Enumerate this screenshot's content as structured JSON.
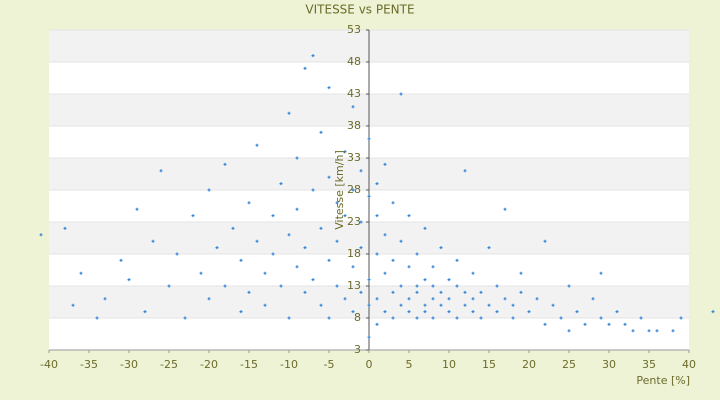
{
  "chart_data": {
    "type": "scatter",
    "title": "VITESSE vs PENTE",
    "x_label": "Pente [%]",
    "y_label": "Vitesse [km/h]",
    "color": "#3a87d6",
    "band_color": "#f2f2f2",
    "grid": true,
    "xlim": [
      -40,
      40
    ],
    "xticks": [
      -40,
      -35,
      -30,
      -25,
      -20,
      -15,
      -10,
      -5,
      0,
      5,
      10,
      15,
      20,
      25,
      30,
      35,
      40
    ],
    "ylim": [
      3,
      53
    ],
    "yticks": [
      3,
      8,
      13,
      18,
      23,
      28,
      33,
      38,
      43,
      48,
      53
    ],
    "x": [
      -41,
      -38,
      -37,
      -36,
      -34,
      -33,
      -31,
      -30,
      -29,
      -28,
      -27,
      -26,
      -25,
      -24,
      -23,
      -22,
      -21,
      -20,
      -20,
      -19,
      -18,
      -18,
      -17,
      -16,
      -16,
      -15,
      -15,
      -14,
      -14,
      -13,
      -13,
      -12,
      -12,
      -11,
      -11,
      -10,
      -10,
      -10,
      -9,
      -9,
      -9,
      -8,
      -8,
      -8,
      -7,
      -7,
      -7,
      -6,
      -6,
      -6,
      -5,
      -5,
      -5,
      -5,
      -4,
      -4,
      -4,
      -3,
      -3,
      -3,
      -2,
      -2,
      -2,
      -2,
      -1,
      -1,
      -1,
      -1,
      0,
      0,
      0,
      0,
      0,
      1,
      1,
      1,
      1,
      1,
      2,
      2,
      2,
      2,
      3,
      3,
      3,
      3,
      4,
      4,
      4,
      4,
      5,
      5,
      5,
      5,
      6,
      6,
      6,
      6,
      7,
      7,
      7,
      7,
      8,
      8,
      8,
      8,
      9,
      9,
      9,
      10,
      10,
      10,
      11,
      11,
      11,
      12,
      12,
      12,
      13,
      13,
      13,
      14,
      14,
      15,
      15,
      16,
      16,
      17,
      17,
      18,
      18,
      19,
      19,
      20,
      21,
      22,
      22,
      23,
      24,
      25,
      25,
      26,
      27,
      28,
      29,
      29,
      30,
      31,
      32,
      33,
      34,
      35,
      36,
      38,
      39,
      43
    ],
    "values": [
      21,
      22,
      10,
      15,
      8,
      11,
      17,
      14,
      25,
      9,
      20,
      31,
      13,
      18,
      8,
      24,
      15,
      11,
      28,
      19,
      13,
      32,
      22,
      9,
      17,
      26,
      12,
      20,
      35,
      15,
      10,
      24,
      18,
      29,
      13,
      40,
      21,
      8,
      16,
      33,
      25,
      47,
      12,
      19,
      49,
      28,
      14,
      37,
      22,
      10,
      44,
      30,
      17,
      8,
      26,
      13,
      20,
      34,
      11,
      24,
      41,
      16,
      28,
      9,
      31,
      19,
      12,
      23,
      36,
      27,
      14,
      5,
      10,
      29,
      18,
      11,
      7,
      24,
      32,
      15,
      9,
      21,
      12,
      26,
      8,
      17,
      43,
      13,
      10,
      20,
      11,
      16,
      9,
      24,
      12,
      8,
      18,
      13,
      10,
      22,
      14,
      9,
      11,
      16,
      8,
      13,
      12,
      19,
      10,
      14,
      9,
      11,
      13,
      17,
      8,
      10,
      12,
      31,
      9,
      15,
      11,
      12,
      8,
      10,
      19,
      13,
      9,
      11,
      25,
      10,
      8,
      12,
      15,
      9,
      11,
      7,
      20,
      10,
      8,
      13,
      6,
      9,
      7,
      11,
      8,
      15,
      7,
      9,
      7,
      6,
      8,
      6,
      6,
      6,
      8,
      9
    ]
  }
}
